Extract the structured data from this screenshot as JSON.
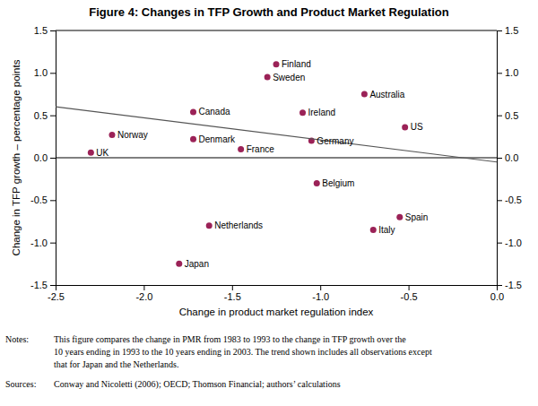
{
  "chart_data": {
    "type": "scatter",
    "title": "Figure 4: Changes in TFP Growth and Product Market Regulation",
    "xlabel": "Change in product market regulation index",
    "ylabel": "Change in TFP growth – percentage points",
    "xlim": [
      -2.5,
      0.0
    ],
    "ylim": [
      -1.5,
      1.5
    ],
    "y2lim": [
      -1.5,
      1.5
    ],
    "xticks": [
      -2.5,
      {
        "value": -2.0,
        "label": "-2.0"
      },
      -1.5,
      {
        "value": -1.0,
        "label": "-1.0"
      },
      -0.5,
      {
        "value": 0.0,
        "label": "0.0"
      }
    ],
    "yticks": [
      -1.5,
      {
        "value": -1.0,
        "label": "-1.0"
      },
      -0.5,
      {
        "value": 0.0,
        "label": "0.0"
      },
      0.5,
      {
        "value": 1.0,
        "label": "1.0"
      },
      1.5
    ],
    "y2ticks": [
      -1.5,
      {
        "value": -1.0,
        "label": "-1.0"
      },
      -0.5,
      {
        "value": 0.0,
        "label": "0.0"
      },
      0.5,
      {
        "value": 1.0,
        "label": "1.0"
      },
      1.5
    ],
    "series": [
      {
        "type": "scatter",
        "color": "#9B2257",
        "labels": [
          "Finland",
          "Sweden",
          "Australia",
          "Canada",
          "Ireland",
          "US",
          "Norway",
          "Denmark",
          "Germany",
          "France",
          "UK",
          "Belgium",
          "Spain",
          "Netherlands",
          "Italy",
          "Japan"
        ],
        "x": [
          -1.25,
          -1.3,
          -0.75,
          -1.72,
          -1.1,
          -0.52,
          -2.18,
          -1.72,
          -1.05,
          -1.45,
          -2.3,
          -1.02,
          -0.55,
          -1.63,
          -0.7,
          -1.8
        ],
        "values": [
          1.1,
          0.95,
          0.75,
          0.54,
          0.53,
          0.36,
          0.27,
          0.22,
          0.2,
          0.1,
          0.06,
          -0.3,
          -0.7,
          -0.8,
          -0.85,
          -1.25
        ]
      },
      {
        "type": "line",
        "color": "#555555",
        "x": [
          -2.5,
          0.0
        ],
        "values": [
          0.6,
          -0.05
        ]
      }
    ],
    "hline": 0,
    "notes_label": "Notes:",
    "notes": [
      "This figure compares the change in PMR from 1983 to 1993 to the change in TFP growth over the",
      "10 years ending in 1993 to the 10 years ending in 2003. The trend shown includes all observations except",
      "that for Japan and the Netherlands."
    ],
    "sources_label": "Sources:",
    "sources": "Conway and Nicoletti (2006); OECD; Thomson Financial; authors’ calculations"
  }
}
